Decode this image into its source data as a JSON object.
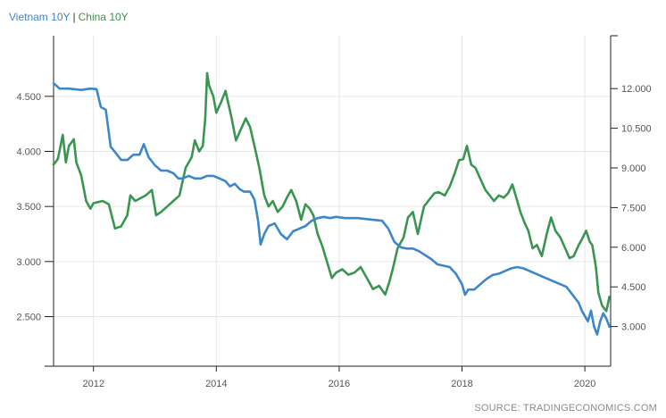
{
  "legend": [
    {
      "label": "Vietnam 10Y",
      "color": "#3d87c9"
    },
    {
      "label": "China 10Y",
      "color": "#3a9550"
    }
  ],
  "legend_separator": "|",
  "source": "SOURCE: TRADINGECONOMICS.COM",
  "chart_data": {
    "type": "line",
    "title": "",
    "xlabel": "",
    "ylabel": "",
    "x_tick_labels": [
      "2012",
      "2014",
      "2016",
      "2018",
      "2020"
    ],
    "x_ticks": [
      2012,
      2014,
      2016,
      2018,
      2020
    ],
    "xlim": [
      2011.35,
      2020.42
    ],
    "grid": true,
    "axes": {
      "left": {
        "ylim": [
          2.05,
          5.05
        ],
        "ticks": [
          2.5,
          3.0,
          3.5,
          4.0,
          4.5
        ],
        "tick_labels": [
          "2.500",
          "3.000",
          "3.500",
          "4.000",
          "4.500"
        ]
      },
      "right": {
        "ylim": [
          1.5,
          14.0
        ],
        "ticks": [
          3.0,
          4.5,
          6.0,
          7.5,
          9.0,
          10.5,
          12.0
        ],
        "tick_labels": [
          "3.000",
          "4.500",
          "6.000",
          "7.500",
          "9.000",
          "10.500",
          "12.000"
        ]
      }
    },
    "series": [
      {
        "name": "China 10Y",
        "axis": "left",
        "color": "#3a9550",
        "x": [
          2011.35,
          2011.42,
          2011.5,
          2011.55,
          2011.6,
          2011.68,
          2011.72,
          2011.8,
          2011.88,
          2011.95,
          2012.0,
          2012.08,
          2012.15,
          2012.25,
          2012.35,
          2012.45,
          2012.55,
          2012.6,
          2012.68,
          2012.75,
          2012.85,
          2012.95,
          2013.02,
          2013.1,
          2013.2,
          2013.3,
          2013.4,
          2013.5,
          2013.6,
          2013.65,
          2013.72,
          2013.78,
          2013.82,
          2013.85,
          2013.88,
          2013.95,
          2014.0,
          2014.08,
          2014.15,
          2014.25,
          2014.32,
          2014.4,
          2014.48,
          2014.55,
          2014.62,
          2014.7,
          2014.78,
          2014.85,
          2014.92,
          2015.0,
          2015.08,
          2015.15,
          2015.22,
          2015.3,
          2015.38,
          2015.45,
          2015.52,
          2015.58,
          2015.65,
          2015.72,
          2015.8,
          2015.88,
          2015.95,
          2016.05,
          2016.15,
          2016.25,
          2016.35,
          2016.45,
          2016.55,
          2016.65,
          2016.75,
          2016.82,
          2016.88,
          2016.95,
          2017.05,
          2017.12,
          2017.2,
          2017.28,
          2017.38,
          2017.45,
          2017.55,
          2017.62,
          2017.72,
          2017.8,
          2017.88,
          2017.95,
          2018.02,
          2018.08,
          2018.15,
          2018.22,
          2018.3,
          2018.38,
          2018.45,
          2018.52,
          2018.6,
          2018.68,
          2018.75,
          2018.82,
          2018.9,
          2018.95,
          2019.02,
          2019.08,
          2019.15,
          2019.22,
          2019.3,
          2019.38,
          2019.45,
          2019.52,
          2019.6,
          2019.68,
          2019.75,
          2019.82,
          2019.9,
          2019.95,
          2020.02,
          2020.08,
          2020.12,
          2020.18,
          2020.22,
          2020.28,
          2020.35,
          2020.4
        ],
        "y": [
          3.88,
          3.93,
          4.15,
          3.9,
          4.05,
          4.11,
          3.9,
          3.78,
          3.55,
          3.48,
          3.53,
          3.54,
          3.55,
          3.52,
          3.3,
          3.32,
          3.42,
          3.6,
          3.55,
          3.57,
          3.6,
          3.65,
          3.42,
          3.45,
          3.5,
          3.55,
          3.6,
          3.85,
          3.95,
          4.1,
          4.0,
          4.05,
          4.3,
          4.71,
          4.6,
          4.5,
          4.35,
          4.45,
          4.55,
          4.3,
          4.1,
          4.2,
          4.3,
          4.22,
          4.05,
          3.85,
          3.6,
          3.5,
          3.55,
          3.45,
          3.5,
          3.58,
          3.65,
          3.55,
          3.38,
          3.52,
          3.48,
          3.42,
          3.25,
          3.15,
          3.0,
          2.85,
          2.9,
          2.93,
          2.88,
          2.9,
          2.95,
          2.85,
          2.75,
          2.78,
          2.7,
          2.82,
          2.95,
          3.12,
          3.22,
          3.4,
          3.45,
          3.25,
          3.5,
          3.55,
          3.62,
          3.63,
          3.6,
          3.68,
          3.8,
          3.92,
          3.93,
          4.05,
          3.88,
          3.85,
          3.75,
          3.65,
          3.6,
          3.55,
          3.6,
          3.58,
          3.62,
          3.7,
          3.55,
          3.45,
          3.35,
          3.28,
          3.12,
          3.15,
          3.05,
          3.25,
          3.4,
          3.28,
          3.22,
          3.12,
          3.03,
          3.05,
          3.15,
          3.2,
          3.28,
          3.18,
          3.15,
          2.95,
          2.72,
          2.6,
          2.55,
          2.68
        ]
      },
      {
        "name": "Vietnam 10Y",
        "axis": "right",
        "color": "#3d87c9",
        "x": [
          2011.35,
          2011.45,
          2011.6,
          2011.8,
          2011.95,
          2012.05,
          2012.12,
          2012.2,
          2012.28,
          2012.35,
          2012.45,
          2012.55,
          2012.65,
          2012.75,
          2012.82,
          2012.9,
          2013.0,
          2013.1,
          2013.2,
          2013.3,
          2013.38,
          2013.45,
          2013.55,
          2013.65,
          2013.75,
          2013.85,
          2013.95,
          2014.05,
          2014.15,
          2014.22,
          2014.3,
          2014.38,
          2014.45,
          2014.55,
          2014.62,
          2014.68,
          2014.72,
          2014.78,
          2014.85,
          2014.95,
          2015.05,
          2015.15,
          2015.25,
          2015.35,
          2015.45,
          2015.55,
          2015.65,
          2015.75,
          2015.85,
          2015.95,
          2016.1,
          2016.3,
          2016.5,
          2016.7,
          2016.8,
          2016.9,
          2017.0,
          2017.1,
          2017.2,
          2017.3,
          2017.4,
          2017.5,
          2017.6,
          2017.7,
          2017.8,
          2017.9,
          2018.0,
          2018.05,
          2018.1,
          2018.2,
          2018.3,
          2018.4,
          2018.5,
          2018.6,
          2018.7,
          2018.8,
          2018.9,
          2019.0,
          2019.1,
          2019.2,
          2019.3,
          2019.4,
          2019.5,
          2019.6,
          2019.7,
          2019.8,
          2019.9,
          2019.95,
          2020.0,
          2020.05,
          2020.1,
          2020.15,
          2020.2,
          2020.25,
          2020.3,
          2020.35,
          2020.4
        ],
        "y": [
          12.2,
          12.0,
          12.0,
          11.95,
          12.0,
          11.98,
          11.3,
          11.2,
          9.8,
          9.6,
          9.3,
          9.3,
          9.5,
          9.5,
          9.9,
          9.4,
          9.1,
          8.9,
          8.9,
          8.8,
          8.6,
          8.6,
          8.7,
          8.6,
          8.6,
          8.7,
          8.7,
          8.6,
          8.5,
          8.3,
          8.4,
          8.2,
          8.1,
          8.1,
          7.8,
          7.0,
          6.1,
          6.5,
          6.8,
          6.9,
          6.5,
          6.3,
          6.6,
          6.7,
          6.8,
          7.0,
          7.1,
          7.15,
          7.1,
          7.15,
          7.1,
          7.1,
          7.05,
          7.0,
          6.7,
          6.2,
          6.0,
          5.95,
          5.95,
          5.85,
          5.7,
          5.55,
          5.35,
          5.3,
          5.25,
          5.0,
          4.6,
          4.2,
          4.4,
          4.4,
          4.6,
          4.8,
          4.95,
          5.0,
          5.1,
          5.2,
          5.25,
          5.2,
          5.1,
          5.0,
          4.9,
          4.8,
          4.7,
          4.6,
          4.5,
          4.2,
          3.9,
          3.6,
          3.4,
          3.2,
          3.6,
          3.0,
          2.7,
          3.2,
          3.5,
          3.3,
          3.0
        ]
      }
    ]
  }
}
